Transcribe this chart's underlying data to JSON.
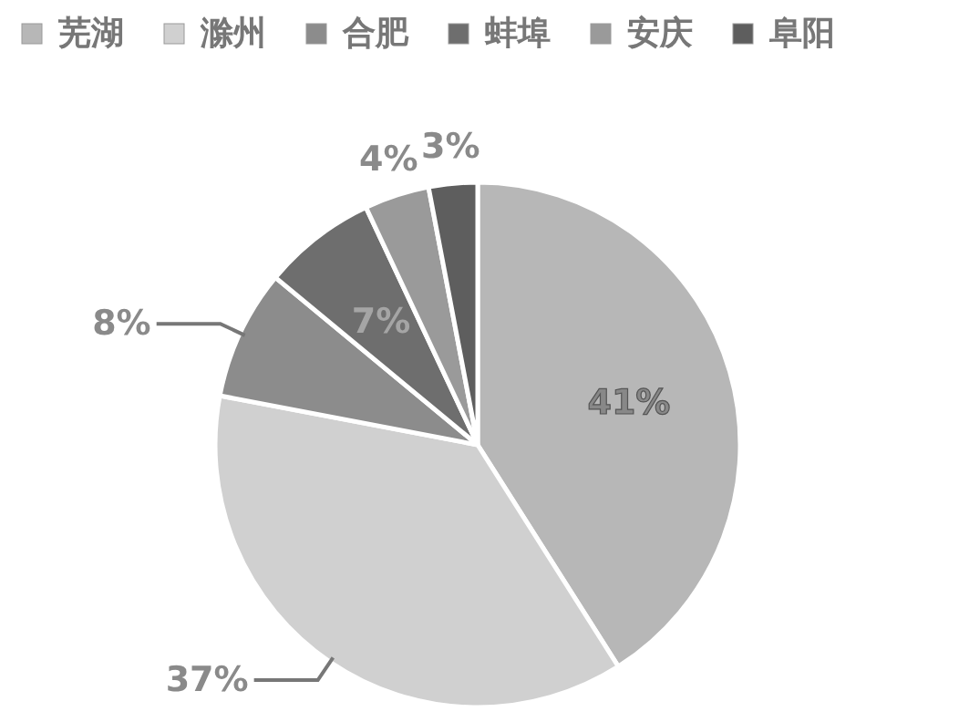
{
  "chart_data": {
    "type": "pie",
    "categories": [
      "芜湖",
      "滁州",
      "合肥",
      "蚌埠",
      "安庆",
      "阜阳"
    ],
    "values": [
      41,
      37,
      8,
      7,
      4,
      3
    ],
    "colors": [
      "#b7b7b7",
      "#d0d0d0",
      "#8c8c8c",
      "#6e6e6e",
      "#9a9a9a",
      "#5e5e5e"
    ],
    "value_labels": [
      "41%",
      "37%",
      "8%",
      "7%",
      "4%",
      "3%"
    ],
    "legend": "top"
  }
}
